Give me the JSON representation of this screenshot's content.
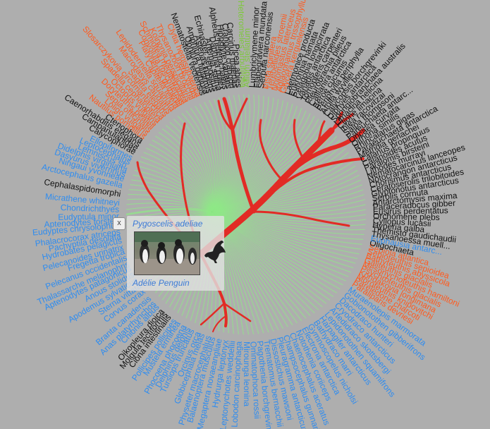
{
  "colors": {
    "background": "#aeaeae",
    "tree_highlight": "#e22b25",
    "tree_faint": "#8fe887",
    "label_orange": "#ff5a1e",
    "label_blue": "#2e8cf0",
    "label_green": "#7ec83c",
    "label_black": "#111111"
  },
  "labels": [
    {
      "t": "Heteromeles arbutifolia",
      "c": "green",
      "a": -91.5
    },
    {
      "t": "Allium stellatum",
      "c": "green",
      "a": -89.5
    },
    {
      "t": "Picea abies",
      "c": "black",
      "a": -93.5
    },
    {
      "t": "Carcinus maenas",
      "c": "black",
      "a": -95
    },
    {
      "t": "Crangon crangon",
      "c": "black",
      "a": -96.5
    },
    {
      "t": "Hippolyte varians",
      "c": "black",
      "a": -98
    },
    {
      "t": "Alpheus heterochaelis",
      "c": "black",
      "a": -99.5
    },
    {
      "t": "Daphnia pulex",
      "c": "black",
      "a": -101
    },
    {
      "t": "Artemia salina",
      "c": "black",
      "a": -102.5
    },
    {
      "t": "Echinaster sepositus",
      "c": "black",
      "a": -104
    },
    {
      "t": "Asterias rubens",
      "c": "black",
      "a": -105.5
    },
    {
      "t": "Amphiura filiformis",
      "c": "black",
      "a": -107
    },
    {
      "t": "Ophiura ophiura",
      "c": "black",
      "a": -108.5
    },
    {
      "t": "Nematostella vectensis",
      "c": "black",
      "a": -110
    },
    {
      "t": "Clytia hemisphaerica",
      "c": "orange",
      "a": -112
    },
    {
      "t": "Lineus viridis",
      "c": "orange",
      "a": -113.5
    },
    {
      "t": "Thysanozoon brocchii",
      "c": "orange",
      "a": -115
    },
    {
      "t": "Koinonia perspicillaris",
      "c": "orange",
      "a": -117
    },
    {
      "t": "Schmidtea mediterranea",
      "c": "orange",
      "a": -118.5
    },
    {
      "t": "Convoluta roscoffensis",
      "c": "orange",
      "a": -120
    },
    {
      "t": "Platynereis dumerilii",
      "c": "orange",
      "a": -121.5
    },
    {
      "t": "Capitella teleta",
      "c": "orange",
      "a": -123
    },
    {
      "t": "Lepidodermella squamata",
      "c": "orange",
      "a": -125
    },
    {
      "t": "Macrodasys caudatus",
      "c": "orange",
      "a": -127
    },
    {
      "t": "Sagitta elegans",
      "c": "orange",
      "a": -129
    },
    {
      "t": "Slosarczykovia circumantarctica",
      "c": "orange",
      "a": -131
    },
    {
      "t": "Spadella cephaloptera",
      "c": "orange",
      "a": -133
    },
    {
      "t": "Octopus vulgaris",
      "c": "orange",
      "a": -135
    },
    {
      "t": "Doryteuthis pealeii",
      "c": "orange",
      "a": -137
    },
    {
      "t": "Sepia officinalis",
      "c": "orange",
      "a": -139
    },
    {
      "t": "Loligo vulgaris",
      "c": "orange",
      "a": -141
    },
    {
      "t": "Nautilus pompilius",
      "c": "orange",
      "a": -143
    },
    {
      "t": "Ctenophora",
      "c": "black",
      "a": -145
    },
    {
      "t": "Caenorhabditis elegans",
      "c": "black",
      "a": -147
    },
    {
      "t": "Campanulariidae",
      "c": "black",
      "a": -149
    },
    {
      "t": "Calycophorae",
      "c": "black",
      "a": -151
    },
    {
      "t": "Ellopiformes",
      "c": "blue",
      "a": -154
    },
    {
      "t": "Leptocephalus",
      "c": "blue",
      "a": -156
    },
    {
      "t": "Lemniscus sp.",
      "c": "blue",
      "a": -158
    },
    {
      "t": "Didelphis virginiana",
      "c": "blue",
      "a": -160
    },
    {
      "t": "Dasyurus viverrinus",
      "c": "blue",
      "a": -162
    },
    {
      "t": "Ningaui yvonneae",
      "c": "blue",
      "a": -164
    },
    {
      "t": "Arctocephalus gazella",
      "c": "blue",
      "a": -167
    },
    {
      "t": "Cephalaspidomorphi",
      "c": "black",
      "a": -171
    },
    {
      "t": "Micrathene whitneyi",
      "c": "blue",
      "a": -175
    },
    {
      "t": "Chondrichthyes",
      "c": "blue",
      "a": -178
    },
    {
      "t": "Eudyptula minor",
      "c": "blue",
      "a": 179
    },
    {
      "t": "Aptenodytes forsteri",
      "c": "blue",
      "a": 177
    },
    {
      "t": "Eudyptes chrysolophus",
      "c": "blue",
      "a": 175
    },
    {
      "t": "Phalacrocorax atriceps",
      "c": "blue",
      "a": 172
    },
    {
      "t": "Pachyptila desolata",
      "c": "blue",
      "a": 170
    },
    {
      "t": "Hydrobates pelagicus",
      "c": "blue",
      "a": 168
    },
    {
      "t": "Pelecanoides urinatrix",
      "c": "blue",
      "a": 165
    },
    {
      "t": "Fregetta tropica",
      "c": "blue",
      "a": 163
    },
    {
      "t": "Pelecanus occidentalis",
      "c": "blue",
      "a": 160
    },
    {
      "t": "Thalassarche melanophris",
      "c": "blue",
      "a": 157
    },
    {
      "t": "Aptenodytes patagonicus",
      "c": "blue",
      "a": 155
    },
    {
      "t": "Anous stolidus",
      "c": "blue",
      "a": 152
    },
    {
      "t": "Apodemus sylvaticus",
      "c": "blue",
      "a": 149
    },
    {
      "t": "Sterna vittata",
      "c": "blue",
      "a": 146
    },
    {
      "t": "Corvus corax",
      "c": "blue",
      "a": 143
    },
    {
      "t": "Branta canadensis",
      "c": "blue",
      "a": 139
    },
    {
      "t": "Anas platyrhynchos",
      "c": "blue",
      "a": 136
    },
    {
      "t": "Chionis albus",
      "c": "blue",
      "a": 134
    },
    {
      "t": "Oikopleura dioica",
      "c": "black",
      "a": 131
    },
    {
      "t": "Molgula tectiformis",
      "c": "black",
      "a": 129
    },
    {
      "t": "Ciona intestinalis",
      "c": "black",
      "a": 127
    },
    {
      "t": "Pollicipes pollicipes",
      "c": "blue",
      "a": 124
    },
    {
      "t": "Mustela erminea",
      "c": "blue",
      "a": 122
    },
    {
      "t": "Phocoena phocoena",
      "c": "blue",
      "a": 119
    },
    {
      "t": "Delphinus delphis",
      "c": "blue",
      "a": 117
    },
    {
      "t": "Tursiops truncatus",
      "c": "blue",
      "a": 115
    },
    {
      "t": "Orcinus orca",
      "c": "blue",
      "a": 112
    },
    {
      "t": "Globicephala melas",
      "c": "blue",
      "a": 110
    },
    {
      "t": "Physeter macrocephalus",
      "c": "blue",
      "a": 107
    },
    {
      "t": "Balaenoptera musculus",
      "c": "blue",
      "a": 105
    },
    {
      "t": "Megaptera novaeangliae",
      "c": "blue",
      "a": 102
    },
    {
      "t": "Hydrurga leptonyx",
      "c": "blue",
      "a": 99
    },
    {
      "t": "Leptonychotes weddellii",
      "c": "blue",
      "a": 96
    },
    {
      "t": "Lobodon carcinophaga",
      "c": "blue",
      "a": 93
    },
    {
      "t": "Mirounga leonina",
      "c": "blue",
      "a": 90
    },
    {
      "t": "Ommatophoca rossii",
      "c": "blue",
      "a": 87
    },
    {
      "t": "Pagothenia borchgrevinki",
      "c": "blue",
      "a": 84
    },
    {
      "t": "Trematomus bernacchii",
      "c": "blue",
      "a": 81
    },
    {
      "t": "Dissostichus mawsoni",
      "c": "blue",
      "a": 78
    },
    {
      "t": "Pleuragramma antarcticum",
      "c": "blue",
      "a": 75
    },
    {
      "t": "Champsocephalus gunnari",
      "c": "blue",
      "a": 72
    },
    {
      "t": "Chaenocephalus aceratus",
      "c": "blue",
      "a": 69
    },
    {
      "t": "Notothenia coriiceps",
      "c": "blue",
      "a": 66
    },
    {
      "t": "Electrona antarctica",
      "c": "blue",
      "a": 63
    },
    {
      "t": "Gymnoscopelus nicholsi",
      "c": "blue",
      "a": 60
    },
    {
      "t": "Bathydraco marri",
      "c": "blue",
      "a": 57
    },
    {
      "t": "Harpagifer antarcticus",
      "c": "blue",
      "a": 54
    },
    {
      "t": "Lepidonotothen squamifrons",
      "c": "blue",
      "a": 51
    },
    {
      "t": "Artedidraco skottsbergi",
      "c": "blue",
      "a": 48
    },
    {
      "t": "Cryodraco antarcticus",
      "c": "blue",
      "a": 45
    },
    {
      "t": "Dacodraco hunteri",
      "c": "blue",
      "a": 42
    },
    {
      "t": "Gobionotothen gibberifrons",
      "c": "blue",
      "a": 39
    },
    {
      "t": "Muraenolepis marmorata",
      "c": "blue",
      "a": 36
    },
    {
      "t": "Paraliparis devriesi",
      "c": "orange",
      "a": 33
    },
    {
      "t": "Pareledone charcoti",
      "c": "orange",
      "a": 31
    },
    {
      "t": "Moroteuthis knipovitchi",
      "c": "orange",
      "a": 29
    },
    {
      "t": "Kondakovia longimana",
      "c": "orange",
      "a": 27
    },
    {
      "t": "Psychroteuthis glacialis",
      "c": "orange",
      "a": 25
    },
    {
      "t": "Mesonychoteuthis hamiltoni",
      "c": "orange",
      "a": 23
    },
    {
      "t": "Galiteuthis glacialis",
      "c": "orange",
      "a": 21
    },
    {
      "t": "Bathyteuthis abyssicola",
      "c": "orange",
      "a": 19
    },
    {
      "t": "Sepioteuthis sepioidea",
      "c": "orange",
      "a": 17
    },
    {
      "t": "Sepiola atlantica",
      "c": "orange",
      "a": 15
    },
    {
      "t": "Oligochaeta",
      "c": "black",
      "a": 13
    },
    {
      "t": "Euphausia antarc...",
      "c": "blue",
      "a": 11
    },
    {
      "t": "Thysanoessa muell...",
      "c": "black",
      "a": 9
    },
    {
      "t": "Themisto gaudichaudii",
      "c": "black",
      "a": 7
    },
    {
      "t": "Hyperia galba",
      "c": "black",
      "a": 5
    },
    {
      "t": "Cyllopus lucasii",
      "c": "black",
      "a": 3
    },
    {
      "t": "Orchomene plebs",
      "c": "black",
      "a": 1
    },
    {
      "t": "Eusirus perdentatus",
      "c": "black",
      "a": -1
    },
    {
      "t": "Paraceradocus gibber",
      "c": "black",
      "a": -3
    },
    {
      "t": "Antarctomysis maxima",
      "c": "black",
      "a": -5
    },
    {
      "t": "Serolis cornuta",
      "c": "black",
      "a": -7
    },
    {
      "t": "Glyptonotus antarcticus",
      "c": "black",
      "a": -9
    },
    {
      "t": "Ceratoserolis trilobitoides",
      "c": "black",
      "a": -11
    },
    {
      "t": "Chorismus antarcticus",
      "c": "black",
      "a": -13
    },
    {
      "t": "Notocrangon antarcticus",
      "c": "black",
      "a": -15
    },
    {
      "t": "Nematocarcinus lanceopes",
      "c": "black",
      "a": -17
    },
    {
      "t": "Lithodes murrayi",
      "c": "black",
      "a": -19
    },
    {
      "t": "Paralomis birsteini",
      "c": "black",
      "a": -21
    },
    {
      "t": "Calanoides acutus",
      "c": "black",
      "a": -23
    },
    {
      "t": "Calanus propinquus",
      "c": "black",
      "a": -25
    },
    {
      "t": "Metridia gerlachei",
      "c": "black",
      "a": -27
    },
    {
      "t": "Paraeuchaeta antarctica",
      "c": "black",
      "a": -29
    },
    {
      "t": "Rhincalanus gigas",
      "c": "black",
      "a": -31
    },
    {
      "t": "Oithona similis",
      "c": "black",
      "a": -33
    },
    {
      "t": "Oncaea curvata",
      "c": "black",
      "a": -35
    },
    {
      "t": "Pareuchaeta antarc...",
      "c": "black",
      "a": -37
    },
    {
      "t": "Salpa thompsoni",
      "c": "black",
      "a": -39
    },
    {
      "t": "Ihlea racovitzai",
      "c": "black",
      "a": -41
    },
    {
      "t": "Clione limacina",
      "c": "black",
      "a": -43
    },
    {
      "t": "Limacina helicina",
      "c": "black",
      "a": -45
    },
    {
      "t": "Spongiobranchaea australis",
      "c": "black",
      "a": -47
    },
    {
      "t": "Diphyes antarctica",
      "c": "black",
      "a": -49
    },
    {
      "t": "Calycopsis borchgrevinki",
      "c": "black",
      "a": -51
    },
    {
      "t": "Atolla wyvillei",
      "c": "black",
      "a": -53
    },
    {
      "t": "Periphylla periphylla",
      "c": "black",
      "a": -55
    },
    {
      "t": "Beroe cucumis",
      "c": "black",
      "a": -57
    },
    {
      "t": "Callianira antarctica",
      "c": "black",
      "a": -59
    },
    {
      "t": "Pleurobrachia pileus",
      "c": "black",
      "a": -61
    },
    {
      "t": "Tomopteris carpenteri",
      "c": "black",
      "a": -63
    },
    {
      "t": "Vanadis antarctica",
      "c": "black",
      "a": -65
    },
    {
      "t": "Pelagobia longicirrata",
      "c": "black",
      "a": -67
    },
    {
      "t": "Eukrohnia hamata",
      "c": "black",
      "a": -69
    },
    {
      "t": "Laetmonice producta",
      "c": "black",
      "a": -71
    },
    {
      "t": "Glycera kerguelensis",
      "c": "orange",
      "a": -73
    },
    {
      "t": "Aglaophamus trissophyllus",
      "c": "orange",
      "a": -75
    },
    {
      "t": "Notomastus latericeus",
      "c": "orange",
      "a": -77
    },
    {
      "t": "Terebellides stroemii",
      "c": "orange",
      "a": -79
    },
    {
      "t": "Pista spinifera",
      "c": "orange",
      "a": -81
    },
    {
      "t": "Serpula narconensis",
      "c": "black",
      "a": -83
    },
    {
      "t": "Flabegraviera mundata",
      "c": "black",
      "a": -85
    },
    {
      "t": "Lumbriclymene minor",
      "c": "black",
      "a": -87
    }
  ],
  "popup": {
    "close_label": "x",
    "scientific_name": "Pygoscelis adeliae",
    "common_name": "Adélie Penguin"
  }
}
